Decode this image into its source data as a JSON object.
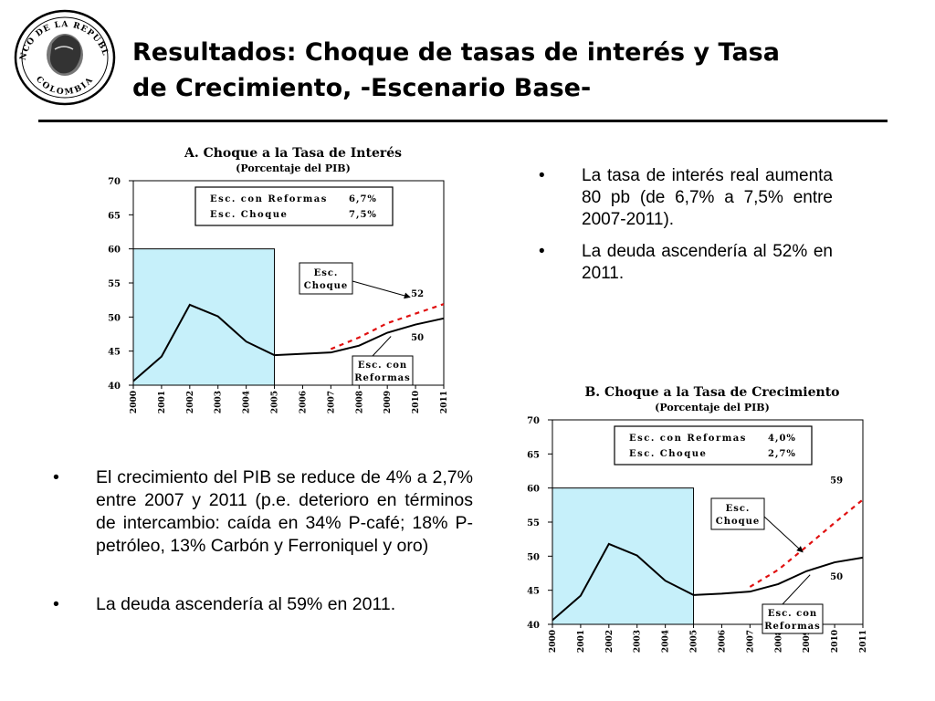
{
  "header": {
    "title_line1": "Resultados: Choque de tasas de interés y Tasa",
    "title_line2": "de Crecimiento, -Escenario Base-",
    "logo_text_top": "BANCO DE LA REPUBLICA",
    "logo_text_bottom": "COLOMBIA"
  },
  "bullets_top": [
    "La tasa de interés real aumenta 80 pb (de 6,7% a 7,5% entre 2007-2011).",
    "La deuda ascendería al 52% en 2011."
  ],
  "bullets_bottom": [
    "El crecimiento del PIB se reduce de 4% a 2,7% entre 2007 y 2011 (p.e. deterioro en términos de intercambio: caída en 34% P-café; 18% P-petróleo, 13% Carbón y Ferroniquel y oro)",
    "La deuda ascendería al 59% en 2011."
  ],
  "bullet_glyph": "•",
  "chart_data": [
    {
      "type": "line",
      "title": "A. Choque a la Tasa de Interés",
      "subtitle": "(Porcentaje del PIB)",
      "categories": [
        "2000",
        "2001",
        "2002",
        "2003",
        "2004",
        "2005",
        "2006",
        "2007",
        "2008",
        "2009",
        "2010",
        "2011"
      ],
      "ylim": [
        40,
        70
      ],
      "yticks": [
        40,
        45,
        50,
        55,
        60,
        65,
        70
      ],
      "shaded_region": {
        "x_from": "2000",
        "x_to": "2005",
        "y_top": 60,
        "color": "#c6f0fa"
      },
      "series": [
        {
          "name": "Esc. con Reformas",
          "style": "solid",
          "color": "#000000",
          "values": [
            40.6,
            44.2,
            51.8,
            50.1,
            46.4,
            44.4,
            44.6,
            44.8,
            45.8,
            47.7,
            48.9,
            49.8
          ]
        },
        {
          "name": "Esc. Choque",
          "style": "dashed",
          "color": "#e01010",
          "values": [
            null,
            null,
            null,
            null,
            null,
            null,
            null,
            45.3,
            47.0,
            49.1,
            50.5,
            51.9
          ]
        }
      ],
      "legend_table": [
        {
          "label": "Esc. con Reformas",
          "value": "6,7%"
        },
        {
          "label": "Esc. Choque",
          "value": "7,5%"
        }
      ],
      "callouts": [
        {
          "label_line1": "Esc.",
          "label_line2": "Choque"
        },
        {
          "label_line1": "Esc. con",
          "label_line2": "Reformas"
        }
      ],
      "end_labels": [
        "52",
        "50"
      ]
    },
    {
      "type": "line",
      "title": "B. Choque a la Tasa de Crecimiento",
      "subtitle": "(Porcentaje del PIB)",
      "categories": [
        "2000",
        "2001",
        "2002",
        "2003",
        "2004",
        "2005",
        "2006",
        "2007",
        "2008",
        "2009",
        "2010",
        "2011"
      ],
      "ylim": [
        40,
        70
      ],
      "yticks": [
        40,
        45,
        50,
        55,
        60,
        65,
        70
      ],
      "shaded_region": {
        "x_from": "2000",
        "x_to": "2005",
        "y_top": 60,
        "color": "#c6f0fa"
      },
      "series": [
        {
          "name": "Esc. con Reformas",
          "style": "solid",
          "color": "#000000",
          "values": [
            40.6,
            44.2,
            51.8,
            50.1,
            46.4,
            44.3,
            44.5,
            44.8,
            45.9,
            47.8,
            49.1,
            49.8
          ]
        },
        {
          "name": "Esc. Choque",
          "style": "dashed",
          "color": "#e01010",
          "values": [
            null,
            null,
            null,
            null,
            null,
            null,
            null,
            45.5,
            48.0,
            51.4,
            54.9,
            58.3
          ]
        }
      ],
      "legend_table": [
        {
          "label": "Esc. con Reformas",
          "value": "4,0%"
        },
        {
          "label": "Esc. Choque",
          "value": "2,7%"
        }
      ],
      "callouts": [
        {
          "label_line1": "Esc.",
          "label_line2": "Choque"
        },
        {
          "label_line1": "Esc. con",
          "label_line2": "Reformas"
        }
      ],
      "end_labels": [
        "59",
        "50"
      ]
    }
  ]
}
